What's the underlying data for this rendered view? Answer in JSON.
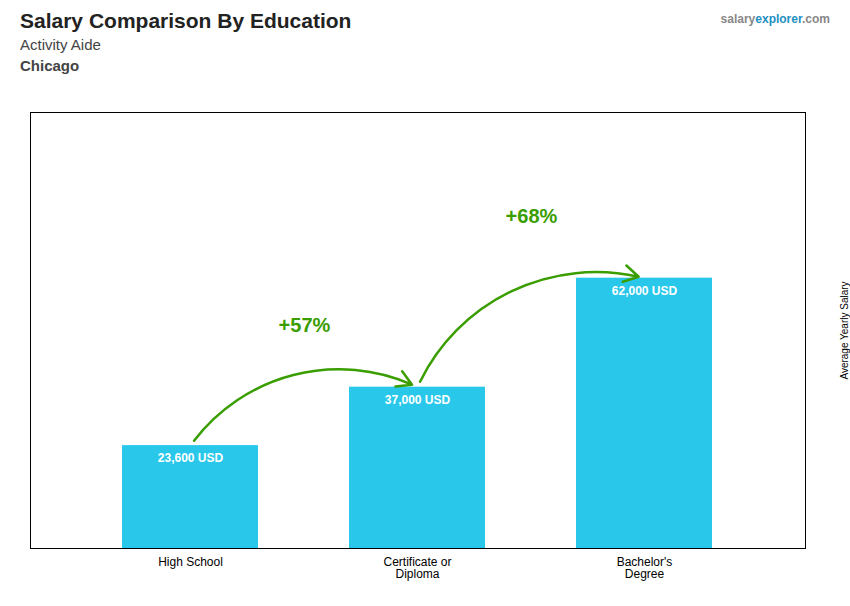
{
  "chart_data": {
    "type": "bar",
    "title": "Salary Comparison By Education",
    "subtitle": [
      "Activity Aide",
      "Chicago"
    ],
    "caption": [
      "salary",
      "explorer",
      ".com"
    ],
    "ylabel": "Average Yearly Salary",
    "categories": [
      "High School",
      "Certificate or\nDiploma",
      "Bachelor's\nDegree"
    ],
    "values": [
      23600,
      37000,
      62000
    ],
    "value_labels": [
      "23,600 USD",
      "37,000 USD",
      "62,000 USD"
    ],
    "data_labels": true,
    "annotations": [
      "+57%",
      "+68%"
    ],
    "color": "#29c8eb",
    "ylim": [
      0,
      100000
    ],
    "tick_labels": "x"
  }
}
